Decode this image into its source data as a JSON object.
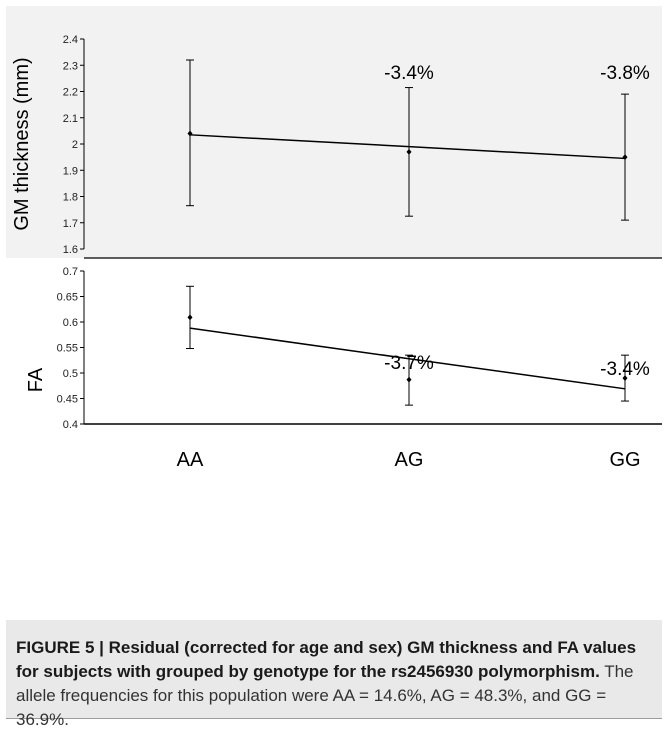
{
  "chart_data": [
    {
      "type": "line",
      "ylabel": "GM thickness (mm)",
      "xlabel": "",
      "categories": [
        "AA",
        "AG",
        "GG"
      ],
      "ylim": [
        1.6,
        2.4
      ],
      "yticks": [
        "1.6",
        "1.7",
        "1.8",
        "1.9",
        "2",
        "2.1",
        "2.2",
        "2.3",
        "2.4"
      ],
      "means": [
        2.04,
        1.97,
        1.95
      ],
      "error_low": [
        1.765,
        1.725,
        1.71
      ],
      "error_high": [
        2.32,
        2.215,
        2.19
      ],
      "trend": [
        2.035,
        1.99,
        1.945
      ],
      "annotations": [
        "",
        "-3.4%",
        "-3.8%"
      ],
      "grid": false
    },
    {
      "type": "line",
      "ylabel": "FA",
      "xlabel": "",
      "categories": [
        "AA",
        "AG",
        "GG"
      ],
      "ylim": [
        0.4,
        0.7
      ],
      "yticks": [
        "0.4",
        "0.45",
        "0.5",
        "0.55",
        "0.6",
        "0.65",
        "0.7"
      ],
      "means": [
        0.609,
        0.487,
        0.49
      ],
      "error_low": [
        0.548,
        0.437,
        0.445
      ],
      "error_high": [
        0.67,
        0.535,
        0.535
      ],
      "trend": [
        0.588,
        0.528,
        0.469
      ],
      "annotations": [
        "",
        "-3.7%",
        "-3.4%"
      ],
      "grid": false
    }
  ],
  "caption": {
    "label": "FIGURE 5 | Residual (corrected for age and sex) GM thickness and FA values for subjects with grouped by genotype for the rs2456930 polymorphism.",
    "body": " The allele frequencies for this population were AA = 14.6%, AG = 48.3%, and GG = 36.9%."
  },
  "colors": {
    "top_panel_bg": "#f2f2f2",
    "caption_bg": "#e9e9e9",
    "line": "#000000"
  }
}
